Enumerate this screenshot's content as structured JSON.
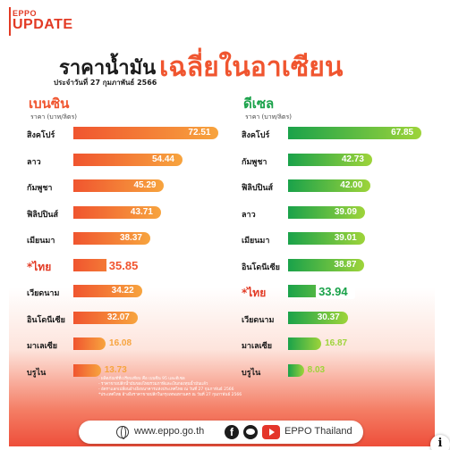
{
  "brand": {
    "line1": "EPPO",
    "line2": "UPDATE"
  },
  "header": {
    "title_main": "ราคาน้ำมัน",
    "title_accent": "เฉลี่ยในอาเซียน",
    "subtitle": "ประจำวันที่ 27 กุมภาพันธ์ 2566"
  },
  "colors": {
    "benzine_start": "#f0552f",
    "benzine_end": "#f7a43e",
    "diesel_start": "#1aa24a",
    "diesel_end": "#9ed43a",
    "benzine_title": "#f0552f",
    "diesel_title": "#1aa24a"
  },
  "chart_data": [
    {
      "type": "bar",
      "title": "เบนซิน",
      "unit_label": "ราคา (บาท/ลิตร)",
      "xlim": [
        0,
        75
      ],
      "categories": [
        "สิงคโปร์",
        "ลาว",
        "กัมพูชา",
        "ฟิลิปปินส์",
        "เมียนมา",
        "*ไทย",
        "เวียดนาม",
        "อินโดนีเซีย",
        "มาเลเซีย",
        "บรูไน"
      ],
      "values": [
        72.51,
        54.44,
        45.29,
        43.71,
        38.37,
        35.85,
        34.22,
        32.07,
        16.08,
        13.73
      ],
      "value_labels": [
        "72.51",
        "54.44",
        "45.29",
        "43.71",
        "38.37",
        "35.85",
        "34.22",
        "32.07",
        "16.08",
        "13.73"
      ],
      "highlight": "*ไทย"
    },
    {
      "type": "bar",
      "title": "ดีเซล",
      "unit_label": "ราคา (บาท/ลิตร)",
      "xlim": [
        0,
        75
      ],
      "categories": [
        "สิงคโปร์",
        "กัมพูชา",
        "ฟิลิปปินส์",
        "ลาว",
        "เมียนมา",
        "อินโดนีเซีย",
        "*ไทย",
        "เวียดนาม",
        "มาเลเซีย",
        "บรูไน"
      ],
      "values": [
        67.85,
        42.73,
        42.0,
        39.09,
        39.01,
        38.87,
        33.94,
        30.37,
        16.87,
        8.03
      ],
      "value_labels": [
        "67.85",
        "42.73",
        "42.00",
        "39.09",
        "39.01",
        "38.87",
        "33.94",
        "30.37",
        "16.87",
        "8.03"
      ],
      "highlight": "*ไทย"
    }
  ],
  "notes": [
    "- ผลิตภัณฑ์ที่เปรียบเทียบ คือ เบนซิน 95 และดีเซล",
    "- ราคาขายปลีกน้ำมันของไทยรวมภาษีและเงินกองทุนน้ำมันแล้ว",
    "- อัตราแลกเปลี่ยนอ้างอิงธนาคารแห่งประเทศไทย ณ วันที่ 27 กุมภาพันธ์ 2566",
    "*ประเทศไทย อ้างอิงราคาขายปลีกในกรุงเทพมหานคร ณ วันที่ 27 กุมภาพันธ์ 2566"
  ],
  "footer": {
    "url": "www.eppo.go.th",
    "brand": "EPPO Thailand",
    "icons": [
      "globe-icon",
      "facebook-icon",
      "line-icon",
      "youtube-icon"
    ]
  },
  "info_glyph": "i"
}
